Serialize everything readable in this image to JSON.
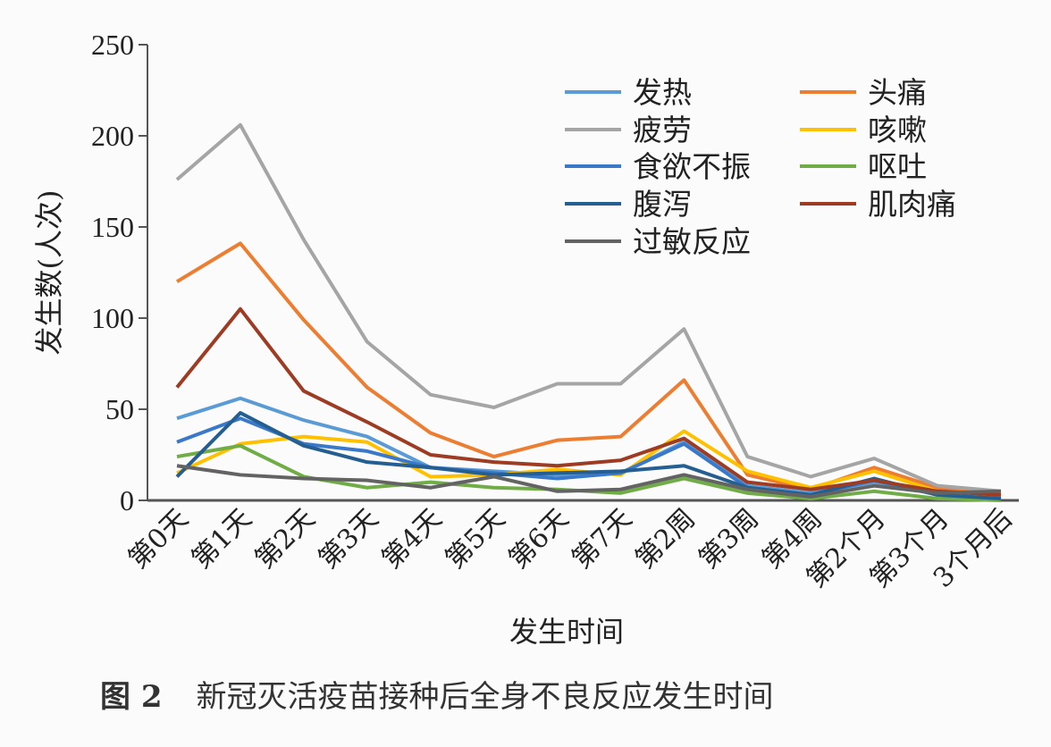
{
  "chart_data": {
    "type": "line",
    "xlabel": "发生时间",
    "ylabel": "发生数(人次)",
    "ylim": [
      0,
      250
    ],
    "yticks": [
      0,
      50,
      100,
      150,
      200,
      250
    ],
    "grid": false,
    "legend_position": "top-right",
    "categories": [
      "第0天",
      "第1天",
      "第2天",
      "第3天",
      "第4天",
      "第5天",
      "第6天",
      "第7天",
      "第2周",
      "第3周",
      "第4周",
      "第2个月",
      "第3个月",
      "3个月后"
    ],
    "series": [
      {
        "name": "发热",
        "color": "#5b9bd5",
        "values": [
          45,
          56,
          44,
          35,
          18,
          16,
          14,
          15,
          32,
          8,
          4,
          10,
          4,
          2
        ]
      },
      {
        "name": "头痛",
        "color": "#ed7d31",
        "values": [
          120,
          141,
          99,
          62,
          37,
          24,
          33,
          35,
          66,
          14,
          6,
          18,
          7,
          3
        ]
      },
      {
        "name": "疲劳",
        "color": "#a5a5a5",
        "values": [
          176,
          206,
          143,
          87,
          58,
          51,
          64,
          64,
          94,
          24,
          13,
          23,
          8,
          5
        ]
      },
      {
        "name": "咳嗽",
        "color": "#ffc000",
        "values": [
          15,
          31,
          35,
          32,
          13,
          14,
          17,
          14,
          38,
          16,
          7,
          16,
          5,
          2
        ]
      },
      {
        "name": "食欲不振",
        "color": "#3a78c9",
        "values": [
          32,
          45,
          31,
          27,
          18,
          15,
          12,
          15,
          31,
          7,
          3,
          11,
          3,
          1
        ]
      },
      {
        "name": "呕吐",
        "color": "#70ad47",
        "values": [
          24,
          30,
          13,
          7,
          10,
          7,
          6,
          4,
          12,
          4,
          1,
          5,
          1,
          0
        ]
      },
      {
        "name": "腹泻",
        "color": "#255e91",
        "values": [
          13,
          48,
          30,
          21,
          18,
          14,
          15,
          16,
          19,
          7,
          3,
          12,
          3,
          1
        ]
      },
      {
        "name": "肌肉痛",
        "color": "#9e3b23",
        "values": [
          62,
          105,
          60,
          43,
          25,
          21,
          19,
          22,
          34,
          10,
          6,
          11,
          5,
          3
        ]
      },
      {
        "name": "过敏反应",
        "color": "#636363",
        "values": [
          19,
          14,
          12,
          11,
          7,
          13,
          5,
          6,
          14,
          6,
          2,
          8,
          4,
          5
        ]
      }
    ]
  },
  "caption": {
    "number": "图 2",
    "text": "新冠灭活疫苗接种后全身不良反应发生时间"
  }
}
